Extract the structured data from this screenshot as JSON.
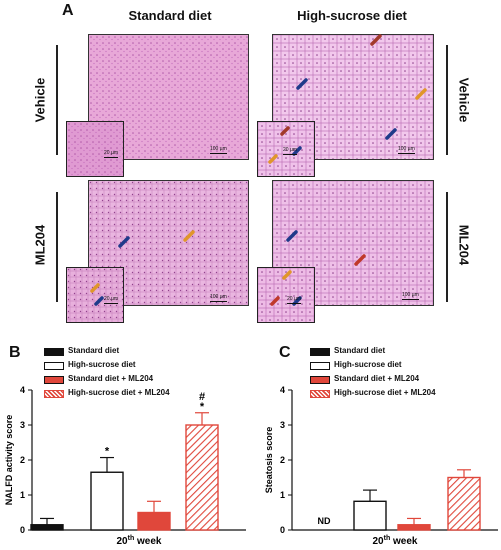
{
  "panel_labels": {
    "a": "A",
    "b": "B",
    "c": "C"
  },
  "column_headers": [
    "Standard diet",
    "High-sucrose diet"
  ],
  "row_labels": [
    "Vehicle",
    "ML204"
  ],
  "scale_bars": {
    "main": "100 µm",
    "inset": "20 µm"
  },
  "legend": [
    {
      "label": "Standard diet",
      "fill": "#111111",
      "pattern": "solid"
    },
    {
      "label": "High-sucrose diet",
      "fill": "#ffffff",
      "pattern": "solid"
    },
    {
      "label": "Standard diet + ML204",
      "fill": "#e0473b",
      "pattern": "solid"
    },
    {
      "label": "High-sucrose diet + ML204",
      "fill": "#ffffff",
      "pattern": "hatch",
      "stroke": "#e0473b"
    }
  ],
  "chart_data": [
    {
      "type": "bar",
      "ylabel": "NALFD activity score",
      "xlabel_main": "20",
      "xlabel_sup": "th",
      "xlabel_rest": " week",
      "ylim": [
        0,
        4
      ],
      "yticks": [
        "0",
        "1",
        "2",
        "3",
        "4"
      ],
      "categories": [
        "Standard diet",
        "High-sucrose diet",
        "Standard diet + ML204",
        "High-sucrose diet + ML204"
      ],
      "values": [
        0.15,
        1.65,
        0.5,
        3.0
      ],
      "errors": [
        0.18,
        0.42,
        0.32,
        0.35
      ],
      "annotations": [
        "",
        "*",
        "",
        "#\n*"
      ]
    },
    {
      "type": "bar",
      "ylabel": "Steatosis score",
      "xlabel_main": "20",
      "xlabel_sup": "th",
      "xlabel_rest": " week",
      "ylim": [
        0,
        4
      ],
      "yticks": [
        "0",
        "1",
        "2",
        "3",
        "4"
      ],
      "categories": [
        "Standard diet",
        "High-sucrose diet",
        "Standard diet + ML204",
        "High-sucrose diet + ML204"
      ],
      "values": [
        null,
        0.82,
        0.15,
        1.5
      ],
      "errors": [
        null,
        0.32,
        0.18,
        0.22
      ],
      "nd_label": "ND"
    }
  ]
}
